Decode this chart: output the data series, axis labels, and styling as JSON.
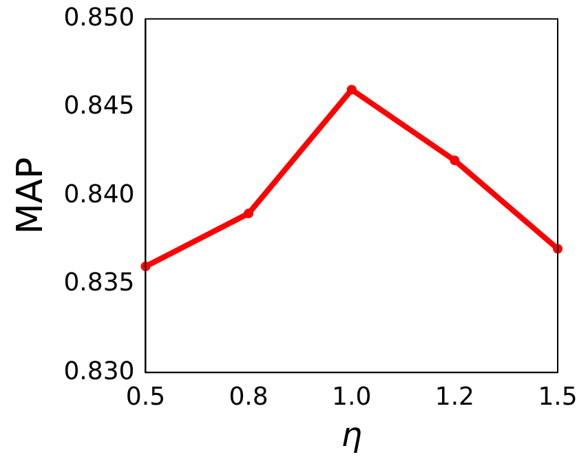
{
  "chart_data": {
    "type": "line",
    "xlabel": "η",
    "ylabel": "MAP",
    "categories": [
      "0.5",
      "0.8",
      "1.0",
      "1.2",
      "1.5"
    ],
    "series": [
      {
        "color": "#ff0000",
        "values": [
          0.836,
          0.839,
          0.846,
          0.842,
          0.837
        ]
      }
    ],
    "ylim": [
      0.83,
      0.85
    ],
    "yticks": [
      {
        "value": 0.83,
        "label": "0.830"
      },
      {
        "value": 0.835,
        "label": "0.835"
      },
      {
        "value": 0.84,
        "label": "0.840"
      },
      {
        "value": 0.845,
        "label": "0.845"
      },
      {
        "value": 0.85,
        "label": "0.850"
      }
    ],
    "grid": false,
    "legend": false,
    "marker": "circle",
    "line_style": "solid"
  }
}
